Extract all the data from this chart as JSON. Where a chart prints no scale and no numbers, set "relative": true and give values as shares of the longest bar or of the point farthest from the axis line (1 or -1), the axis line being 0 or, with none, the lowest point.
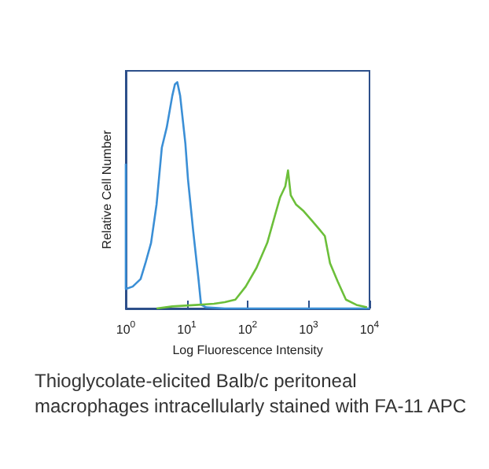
{
  "chart_data": {
    "type": "line",
    "relative": true,
    "log": "x",
    "xlabel": "Log Fluorescence Intensity",
    "ylabel": "Relative Cell Number",
    "xlim": [
      1,
      10000
    ],
    "xticks": [
      {
        "value": 1,
        "label": "10$^{0}$"
      },
      {
        "value": 10,
        "label": "10$^{1}$"
      },
      {
        "value": 100,
        "label": "10$^{2}$"
      },
      {
        "value": 1000,
        "label": "10$^{3}$"
      },
      {
        "value": 10000,
        "label": "10$^{4}$"
      }
    ],
    "marker": "none",
    "grid": false,
    "annotations": [
      "Thioglycolate-elicited Balb/c peritoneal macrophages intracellularly stained with FA-11 APC"
    ],
    "series": [
      {
        "color": "#3b8fd6",
        "x": [
          1,
          1,
          1.3,
          1.75,
          2.1,
          2.6,
          3.2,
          3.9,
          4.7,
          5.8,
          6.4,
          7,
          7.8,
          9.5,
          10.5,
          12.8,
          15.6,
          17.2,
          21,
          42,
          114,
          10000
        ],
        "values": [
          0.64,
          0.086,
          0.097,
          0.13,
          0.2,
          0.29,
          0.46,
          0.71,
          0.8,
          0.94,
          0.99,
          1,
          0.94,
          0.73,
          0.57,
          0.34,
          0.13,
          0.016,
          0.005,
          0,
          0,
          0
        ]
      },
      {
        "color": "#6cbf3a",
        "x": [
          3.2,
          5.8,
          15.6,
          28,
          42,
          63,
          93,
          140,
          210,
          280,
          340,
          415,
          460,
          510,
          620,
          830,
          1120,
          1500,
          1850,
          2250,
          3000,
          4100,
          6100,
          9100
        ],
        "values": [
          0,
          0.009,
          0.016,
          0.021,
          0.028,
          0.039,
          0.097,
          0.18,
          0.29,
          0.41,
          0.49,
          0.54,
          0.61,
          0.5,
          0.46,
          0.43,
          0.39,
          0.35,
          0.32,
          0.2,
          0.12,
          0.039,
          0.016,
          0.005
        ]
      }
    ]
  }
}
